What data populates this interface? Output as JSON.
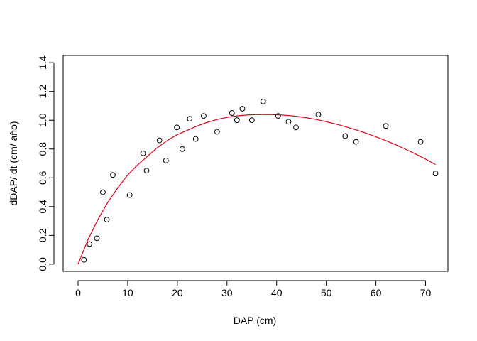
{
  "chart_data": {
    "type": "scatter",
    "title": "",
    "xlabel": "DAP (cm)",
    "ylabel": "dDAP/ dt (cm/ año)",
    "xlim": [
      -3,
      74.5
    ],
    "ylim": [
      -0.05,
      1.45
    ],
    "x_ticks": [
      0,
      10,
      20,
      30,
      40,
      50,
      60,
      70
    ],
    "y_ticks": [
      0.0,
      0.2,
      0.4,
      0.6,
      0.8,
      1.0,
      1.2,
      1.4
    ],
    "y_tick_labels": [
      "0.0",
      "0.2",
      "0.4",
      "0.6",
      "0.8",
      "1.0",
      "1.2",
      "1.4"
    ],
    "grid": false,
    "legend": "none",
    "series": [
      {
        "kind": "points",
        "marker": "open-circle",
        "color": "#000000",
        "x": [
          1.2,
          2.3,
          3.8,
          5.0,
          5.8,
          7.0,
          10.4,
          13.1,
          13.8,
          16.4,
          17.7,
          19.9,
          21.0,
          22.5,
          23.7,
          25.3,
          28.0,
          31.0,
          32.0,
          33.1,
          35.0,
          37.3,
          40.3,
          42.4,
          43.9,
          48.4,
          53.8,
          56.0,
          62.0,
          69.0,
          72.0
        ],
        "y": [
          0.03,
          0.14,
          0.18,
          0.5,
          0.31,
          0.62,
          0.48,
          0.77,
          0.65,
          0.86,
          0.72,
          0.95,
          0.8,
          1.01,
          0.87,
          1.03,
          0.92,
          1.05,
          1.0,
          1.08,
          1.0,
          1.13,
          1.03,
          0.99,
          0.95,
          1.04,
          0.89,
          0.85,
          0.96,
          0.85,
          0.63
        ]
      },
      {
        "kind": "fitted-line",
        "color": "#e0001b",
        "x": [
          0,
          2,
          4,
          6,
          8,
          10,
          12,
          14,
          16,
          18,
          20,
          22,
          24,
          26,
          28,
          30,
          32,
          34,
          36,
          38,
          40,
          42,
          44,
          46,
          48,
          50,
          52,
          54,
          56,
          58,
          60,
          62,
          64,
          66,
          68,
          70,
          72
        ],
        "y": [
          0.0,
          0.17,
          0.31,
          0.43,
          0.53,
          0.62,
          0.69,
          0.75,
          0.81,
          0.86,
          0.9,
          0.93,
          0.96,
          0.985,
          1.005,
          1.02,
          1.03,
          1.036,
          1.039,
          1.04,
          1.038,
          1.034,
          1.027,
          1.017,
          1.005,
          0.99,
          0.973,
          0.954,
          0.933,
          0.91,
          0.885,
          0.858,
          0.829,
          0.798,
          0.765,
          0.73,
          0.692
        ]
      }
    ]
  }
}
